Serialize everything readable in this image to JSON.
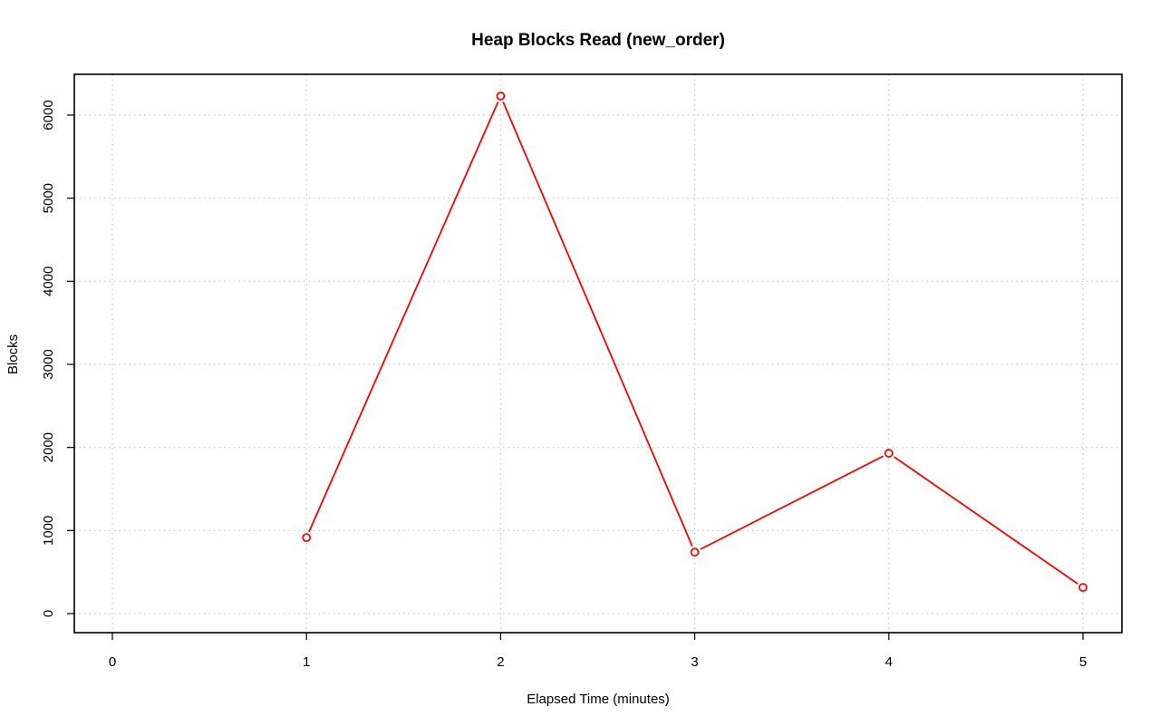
{
  "chart_data": {
    "type": "line",
    "title": "Heap Blocks Read (new_order)",
    "xlabel": "Elapsed Time (minutes)",
    "ylabel": "Blocks",
    "x_ticks": [
      "0",
      "1",
      "2",
      "3",
      "4",
      "5"
    ],
    "y_ticks": [
      "0",
      "1000",
      "2000",
      "3000",
      "4000",
      "5000",
      "6000"
    ],
    "xlim": [
      0,
      5
    ],
    "ylim": [
      0,
      6230
    ],
    "grid": true,
    "grid_style": "dotted",
    "series": [
      {
        "color": "#ff0000",
        "marker": "open-circle",
        "x": [
          1,
          2,
          3,
          4,
          5
        ],
        "y": [
          915,
          6230,
          740,
          1930,
          315
        ]
      }
    ]
  }
}
